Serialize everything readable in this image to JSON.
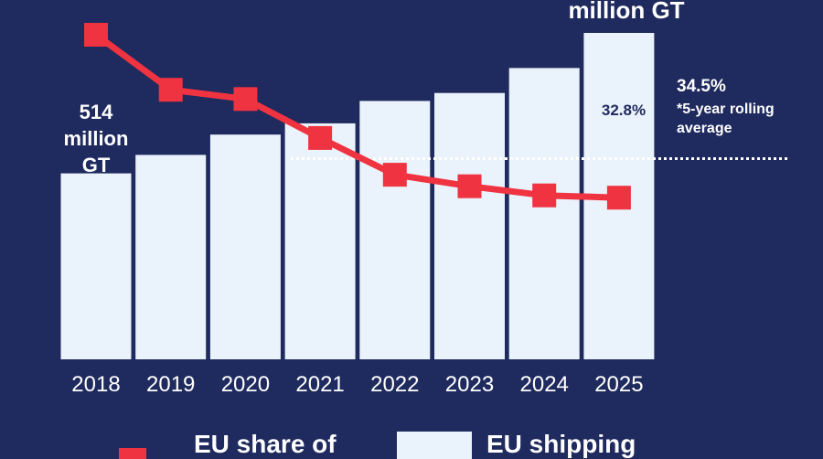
{
  "colors": {
    "background": "#1f2a5e",
    "bar": "#eaf2fb",
    "line": "#ef3340",
    "text": "#ffffff",
    "inner_label": "#1f2a5e"
  },
  "annotations": {
    "first_bar_label": [
      "514",
      "million",
      "GT"
    ],
    "last_bar_label_fragment": "million GT",
    "avg_value": "34.5%",
    "avg_note_line1": "*5-year rolling",
    "avg_note_line2": "average",
    "last_share_label": "32.8%"
  },
  "legend": {
    "share_label": "EU share of",
    "shipping_label": "EU shipping"
  },
  "chart_data": {
    "type": "bar",
    "categories": [
      "2018",
      "2019",
      "2020",
      "2021",
      "2022",
      "2023",
      "2024",
      "2025"
    ],
    "series": [
      {
        "values": [
          514,
          565,
          621,
          652,
          714,
          736,
          805,
          902
        ]
      },
      {
        "values": [
          39.9,
          37.5,
          37.1,
          35.4,
          33.8,
          33.3,
          32.9,
          32.8
        ]
      }
    ],
    "reference_line": {
      "value": 34.5
    }
  }
}
